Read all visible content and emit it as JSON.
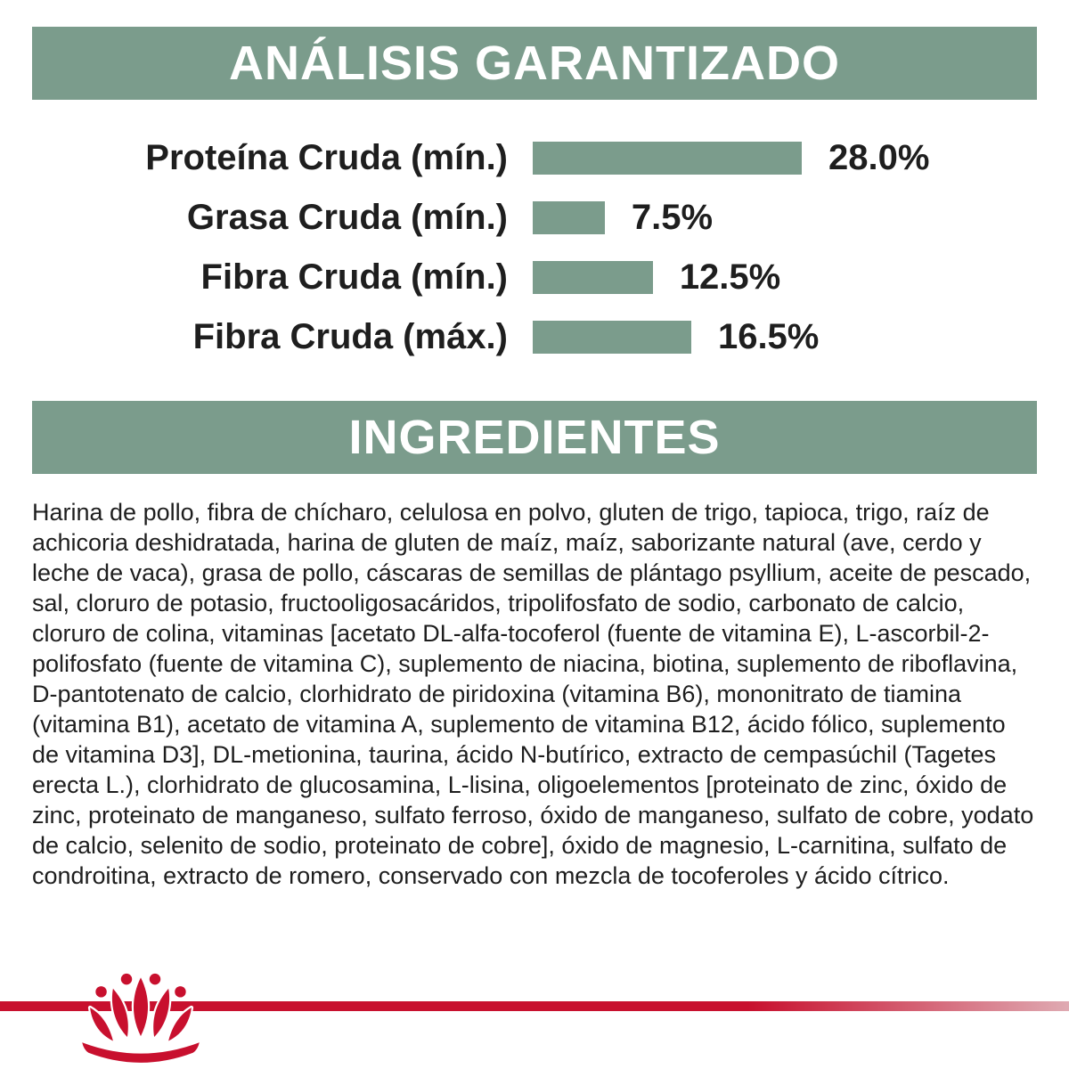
{
  "colors": {
    "green": "#7B9C8C",
    "red": "#C8102E",
    "red_light": "#DFAAB2",
    "text": "#1e1e1e"
  },
  "sections": {
    "analysis_title": "ANÁLISIS GARANTIZADO",
    "ingredients_title": "INGREDIENTES"
  },
  "chart_data": {
    "type": "bar",
    "title": "ANÁLISIS GARANTIZADO",
    "max": 28.0,
    "rows": [
      {
        "label": "Proteína Cruda (mín.)",
        "value": 28.0,
        "display": "28.0%"
      },
      {
        "label": "Grasa Cruda (mín.)",
        "value": 7.5,
        "display": "7.5%"
      },
      {
        "label": "Fibra Cruda (mín.)",
        "value": 12.5,
        "display": "12.5%"
      },
      {
        "label": "Fibra Cruda (máx.)",
        "value": 16.5,
        "display": "16.5%"
      }
    ]
  },
  "ingredients_text": "Harina de pollo, fibra de chícharo, celulosa en polvo, gluten de trigo, tapioca, trigo, raíz de achicoria deshidratada, harina de gluten de maíz, maíz, saborizante natural (ave, cerdo y leche de vaca), grasa de pollo, cáscaras de semillas de plántago psyllium, aceite de pescado, sal, cloruro de potasio, fructooligosacáridos, tripolifosfato de sodio, carbonato de calcio, cloruro de colina, vitaminas [acetato DL-alfa-tocoferol (fuente de vitamina E), L-ascorbil-2-polifosfato (fuente de vitamina C), suplemento de niacina, biotina, suplemento de riboflavina, D-pantotenato de calcio, clorhidrato de piridoxina (vitamina B6), mononitrato de tiamina (vitamina B1), acetato de vitamina A, suplemento de vitamina B12, ácido fólico, suplemento de vitamina D3], DL-metionina, taurina, ácido N-butírico, extracto de cempasúchil (Tagetes erecta L.), clorhidrato de glucosamina, L-lisina, oligoelementos [proteinato de zinc, óxido de zinc, proteinato de manganeso, sulfato ferroso, óxido de manganeso, sulfato de cobre, yodato de calcio, selenito de sodio, proteinato de cobre], óxido de magnesio, L-carnitina, sulfato de condroitina, extracto de romero, conservado con mezcla de tocoferoles y ácido cítrico.",
  "brand": {
    "logo": "royal-canin-crown"
  }
}
